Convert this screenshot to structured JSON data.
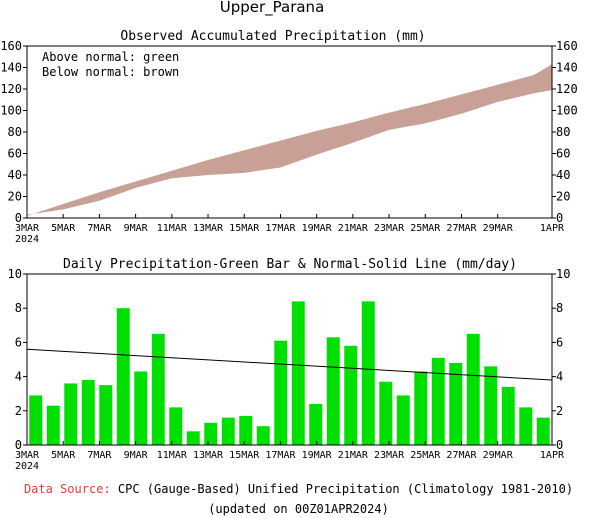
{
  "page": {
    "title": "Upper_Parana"
  },
  "footer": {
    "source_label": "Data Source:",
    "source_text": "CPC (Gauge-Based) Unified Precipitation (Climatology 1981-2010)",
    "updated": "(updated on 00Z01APR2024)"
  },
  "chart_data": [
    {
      "type": "area",
      "title": "Observed Accumulated Precipitation (mm)",
      "legend": [
        "Above normal: green",
        "Below normal: brown"
      ],
      "legend_placement": "top-left",
      "colors": {
        "below": "#c8a096",
        "above": "#00e000"
      },
      "x_ticks": [
        "3MAR",
        "5MAR",
        "7MAR",
        "9MAR",
        "11MAR",
        "13MAR",
        "15MAR",
        "17MAR",
        "19MAR",
        "21MAR",
        "23MAR",
        "25MAR",
        "27MAR",
        "29MAR",
        "1APR"
      ],
      "x_year": "2024",
      "x_day_range": [
        0,
        29
      ],
      "ylim": [
        0,
        160
      ],
      "y_ticks": [
        0,
        20,
        40,
        60,
        80,
        100,
        120,
        140,
        160
      ],
      "x": [
        0,
        2,
        4,
        6,
        8,
        10,
        12,
        14,
        16,
        18,
        20,
        22,
        24,
        26,
        28,
        29
      ],
      "normal": [
        2,
        13,
        24,
        34,
        44,
        54,
        63,
        72,
        81,
        89,
        98,
        106,
        115,
        124,
        133,
        143
      ],
      "observed": [
        3,
        8,
        16,
        28,
        37,
        40,
        42,
        47,
        59,
        70,
        82,
        88,
        97,
        108,
        116,
        119
      ]
    },
    {
      "type": "bar",
      "title": "Daily Precipitation-Green Bar & Normal-Solid Line (mm/day)",
      "bar_color": "#00e000",
      "line_color": "#000000",
      "x_ticks": [
        "3MAR",
        "5MAR",
        "7MAR",
        "9MAR",
        "11MAR",
        "13MAR",
        "15MAR",
        "17MAR",
        "19MAR",
        "21MAR",
        "23MAR",
        "25MAR",
        "27MAR",
        "29MAR",
        "1APR"
      ],
      "x_year": "2024",
      "x_day_range": [
        0,
        29
      ],
      "ylim": [
        0,
        10
      ],
      "y_ticks": [
        0,
        2,
        4,
        6,
        8,
        10
      ],
      "values": [
        2.9,
        2.3,
        3.6,
        3.8,
        3.5,
        8.0,
        4.3,
        6.5,
        2.2,
        0.8,
        1.3,
        1.6,
        1.7,
        1.1,
        6.1,
        8.4,
        2.4,
        6.3,
        5.8,
        8.4,
        3.7,
        2.9,
        4.3,
        5.1,
        4.8,
        6.5,
        4.6,
        3.4,
        2.2,
        1.6
      ],
      "normal_start": 5.6,
      "normal_end": 3.8
    }
  ]
}
